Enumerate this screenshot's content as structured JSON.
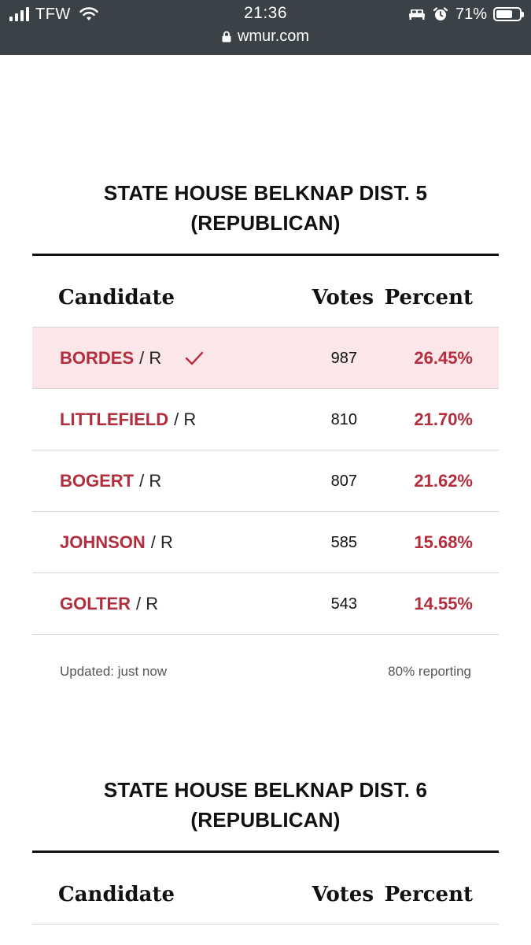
{
  "status_bar": {
    "carrier": "TFW",
    "time": "21:36",
    "url": "wmur.com",
    "battery_percent": "71%",
    "battery_level": 0.71,
    "icons": [
      "signal-icon",
      "wifi-icon",
      "lock-icon",
      "bed-icon",
      "alarm-icon",
      "battery-icon"
    ]
  },
  "colors": {
    "status_bar_bg": "#3a4147",
    "candidate_red": "#b32d3d",
    "winner_row_bg": "#fbe7e9"
  },
  "races": [
    {
      "title_line1": "STATE HOUSE BELKNAP DIST. 5",
      "title_line2": "(REPUBLICAN)",
      "headers": {
        "candidate": "Candidate",
        "votes": "Votes",
        "percent": "Percent"
      },
      "candidates": [
        {
          "name": "BORDES",
          "party": "/ R",
          "votes": "987",
          "percent": "26.45%",
          "winner": true
        },
        {
          "name": "LITTLEFIELD",
          "party": "/ R",
          "votes": "810",
          "percent": "21.70%",
          "winner": false
        },
        {
          "name": "BOGERT",
          "party": "/ R",
          "votes": "807",
          "percent": "21.62%",
          "winner": false
        },
        {
          "name": "JOHNSON",
          "party": "/ R",
          "votes": "585",
          "percent": "15.68%",
          "winner": false
        },
        {
          "name": "GOLTER",
          "party": "/ R",
          "votes": "543",
          "percent": "14.55%",
          "winner": false
        }
      ],
      "updated": "Updated: just now",
      "reporting": "80% reporting"
    },
    {
      "title_line1": "STATE HOUSE BELKNAP DIST. 6",
      "title_line2": "(REPUBLICAN)",
      "headers": {
        "candidate": "Candidate",
        "votes": "Votes",
        "percent": "Percent"
      }
    }
  ]
}
